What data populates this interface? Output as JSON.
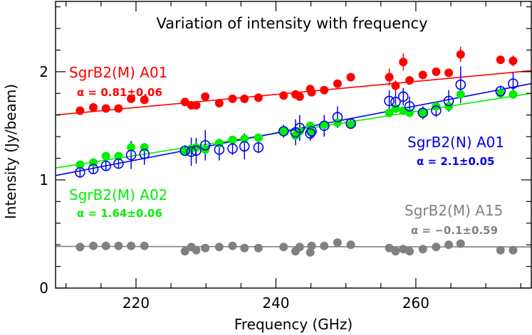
{
  "chart_data": {
    "type": "scatter",
    "title": "Variation of intensity with frequency",
    "xlabel": "Frequency (GHz)",
    "ylabel": "Intensity (Jy/beam)",
    "xlim": [
      208.5,
      276.5
    ],
    "ylim": [
      0,
      2.65
    ],
    "x_ticks": [
      220,
      240,
      260
    ],
    "y_ticks": [
      0,
      1,
      2
    ],
    "grid": false,
    "legend": "none",
    "series": [
      {
        "name": "SgrB2(M) A01",
        "alpha_text": "α = 0.81±0.06",
        "color": "#ff0000",
        "marker": "filled-circle",
        "fit": {
          "x": [
            208.5,
            276.5
          ],
          "y": [
            1.6,
            2.01
          ]
        },
        "points": [
          {
            "x": 212.0,
            "y": 1.64
          },
          {
            "x": 213.9,
            "y": 1.67
          },
          {
            "x": 215.7,
            "y": 1.66
          },
          {
            "x": 217.5,
            "y": 1.66
          },
          {
            "x": 219.3,
            "y": 1.75
          },
          {
            "x": 221.2,
            "y": 1.74
          },
          {
            "x": 227.0,
            "y": 1.72
          },
          {
            "x": 227.9,
            "y": 1.69
          },
          {
            "x": 228.6,
            "y": 1.69
          },
          {
            "x": 229.9,
            "y": 1.77
          },
          {
            "x": 231.9,
            "y": 1.71
          },
          {
            "x": 233.8,
            "y": 1.75
          },
          {
            "x": 235.5,
            "y": 1.75
          },
          {
            "x": 237.5,
            "y": 1.76
          },
          {
            "x": 241.1,
            "y": 1.78
          },
          {
            "x": 242.8,
            "y": 1.79
          },
          {
            "x": 243.4,
            "y": 1.77
          },
          {
            "x": 244.9,
            "y": 1.84
          },
          {
            "x": 245.1,
            "y": 1.81
          },
          {
            "x": 246.9,
            "y": 1.83
          },
          {
            "x": 248.8,
            "y": 1.89
          },
          {
            "x": 250.7,
            "y": 1.95
          },
          {
            "x": 256.2,
            "y": 1.95,
            "err": 0.08
          },
          {
            "x": 257.1,
            "y": 1.87,
            "err": 0.05
          },
          {
            "x": 258.2,
            "y": 2.09,
            "err": 0.08
          },
          {
            "x": 259.1,
            "y": 1.92
          },
          {
            "x": 261.0,
            "y": 1.97
          },
          {
            "x": 262.9,
            "y": 2.0
          },
          {
            "x": 264.7,
            "y": 1.99
          },
          {
            "x": 266.4,
            "y": 2.16,
            "err": 0.07
          },
          {
            "x": 272.1,
            "y": 2.11
          },
          {
            "x": 273.9,
            "y": 2.1,
            "err": 0.05
          }
        ]
      },
      {
        "name": "SgrB2(M) A02",
        "alpha_text": "α = 1.64±0.06",
        "color": "#00ee00",
        "marker": "filled-circle",
        "fit": {
          "x": [
            208.5,
            276.5
          ],
          "y": [
            1.11,
            1.8
          ]
        },
        "points": [
          {
            "x": 212.0,
            "y": 1.14
          },
          {
            "x": 213.9,
            "y": 1.16
          },
          {
            "x": 215.7,
            "y": 1.22
          },
          {
            "x": 217.5,
            "y": 1.22
          },
          {
            "x": 219.3,
            "y": 1.3
          },
          {
            "x": 221.2,
            "y": 1.3
          },
          {
            "x": 227.0,
            "y": 1.26
          },
          {
            "x": 227.9,
            "y": 1.29
          },
          {
            "x": 228.6,
            "y": 1.3
          },
          {
            "x": 229.9,
            "y": 1.28
          },
          {
            "x": 231.9,
            "y": 1.34
          },
          {
            "x": 233.8,
            "y": 1.37
          },
          {
            "x": 235.5,
            "y": 1.38
          },
          {
            "x": 237.5,
            "y": 1.39
          },
          {
            "x": 241.1,
            "y": 1.45
          },
          {
            "x": 242.8,
            "y": 1.41
          },
          {
            "x": 243.4,
            "y": 1.45
          },
          {
            "x": 244.9,
            "y": 1.5
          },
          {
            "x": 245.1,
            "y": 1.44
          },
          {
            "x": 246.9,
            "y": 1.51
          },
          {
            "x": 248.8,
            "y": 1.53
          },
          {
            "x": 250.7,
            "y": 1.51
          },
          {
            "x": 256.2,
            "y": 1.62
          },
          {
            "x": 257.1,
            "y": 1.66
          },
          {
            "x": 258.2,
            "y": 1.64
          },
          {
            "x": 259.1,
            "y": 1.62
          },
          {
            "x": 261.0,
            "y": 1.62
          },
          {
            "x": 262.9,
            "y": 1.68
          },
          {
            "x": 264.7,
            "y": 1.68
          },
          {
            "x": 266.4,
            "y": 1.79
          },
          {
            "x": 272.1,
            "y": 1.8
          },
          {
            "x": 273.9,
            "y": 1.79
          }
        ]
      },
      {
        "name": "SgrB2(N) A01",
        "alpha_text": "α = 2.1±0.05",
        "color": "#0000ee",
        "marker": "open-circle",
        "fit": {
          "x": [
            208.5,
            276.5
          ],
          "y": [
            1.04,
            1.89
          ]
        },
        "points": [
          {
            "x": 212.0,
            "y": 1.07,
            "err": 0.05
          },
          {
            "x": 213.9,
            "y": 1.1,
            "err": 0.04
          },
          {
            "x": 215.7,
            "y": 1.13,
            "err": 0.05
          },
          {
            "x": 217.5,
            "y": 1.15,
            "err": 0.04
          },
          {
            "x": 219.3,
            "y": 1.23,
            "err": 0.13
          },
          {
            "x": 221.2,
            "y": 1.24,
            "err": 0.1
          },
          {
            "x": 227.0,
            "y": 1.27,
            "err": 0.05
          },
          {
            "x": 227.9,
            "y": 1.26,
            "err": 0.13
          },
          {
            "x": 228.6,
            "y": 1.27,
            "err": 0.12
          },
          {
            "x": 229.9,
            "y": 1.32,
            "err": 0.14
          },
          {
            "x": 231.9,
            "y": 1.28,
            "err": 0.1
          },
          {
            "x": 233.8,
            "y": 1.29,
            "err": 0.06
          },
          {
            "x": 235.5,
            "y": 1.31,
            "err": 0.12
          },
          {
            "x": 237.5,
            "y": 1.3,
            "err": 0.05
          },
          {
            "x": 241.1,
            "y": 1.45,
            "err": 0.06
          },
          {
            "x": 242.8,
            "y": 1.44,
            "err": 0.12
          },
          {
            "x": 243.4,
            "y": 1.48,
            "err": 0.12
          },
          {
            "x": 244.9,
            "y": 1.43,
            "err": 0.07
          },
          {
            "x": 245.1,
            "y": 1.45,
            "err": 0.07
          },
          {
            "x": 246.9,
            "y": 1.5,
            "err": 0.1
          },
          {
            "x": 248.8,
            "y": 1.58,
            "err": 0.1
          },
          {
            "x": 250.7,
            "y": 1.52,
            "err": 0.05
          },
          {
            "x": 256.2,
            "y": 1.73,
            "err": 0.1
          },
          {
            "x": 257.1,
            "y": 1.72,
            "err": 0.1
          },
          {
            "x": 258.2,
            "y": 1.77,
            "err": 0.08
          },
          {
            "x": 259.1,
            "y": 1.68,
            "err": 0.09
          },
          {
            "x": 261.0,
            "y": 1.62,
            "err": 0.06
          },
          {
            "x": 262.9,
            "y": 1.64,
            "err": 0.06
          },
          {
            "x": 264.7,
            "y": 1.73,
            "err": 0.1
          },
          {
            "x": 266.4,
            "y": 1.88,
            "err": 0.17
          },
          {
            "x": 272.1,
            "y": 1.82,
            "err": 0.05
          },
          {
            "x": 273.9,
            "y": 1.89,
            "err": 0.1
          }
        ]
      },
      {
        "name": "SgrB2(M) A15",
        "alpha_text": "α = −0.1±0.59",
        "color": "#808080",
        "marker": "filled-circle",
        "fit": {
          "x": [
            208.5,
            276.5
          ],
          "y": [
            0.385,
            0.38
          ]
        },
        "points": [
          {
            "x": 212.0,
            "y": 0.38
          },
          {
            "x": 213.9,
            "y": 0.39
          },
          {
            "x": 215.7,
            "y": 0.39
          },
          {
            "x": 217.5,
            "y": 0.39
          },
          {
            "x": 219.3,
            "y": 0.39
          },
          {
            "x": 221.2,
            "y": 0.39
          },
          {
            "x": 227.0,
            "y": 0.34
          },
          {
            "x": 227.9,
            "y": 0.38
          },
          {
            "x": 228.6,
            "y": 0.35
          },
          {
            "x": 229.9,
            "y": 0.37
          },
          {
            "x": 231.9,
            "y": 0.38
          },
          {
            "x": 233.8,
            "y": 0.39
          },
          {
            "x": 235.5,
            "y": 0.37
          },
          {
            "x": 237.5,
            "y": 0.37
          },
          {
            "x": 241.1,
            "y": 0.38
          },
          {
            "x": 242.8,
            "y": 0.34
          },
          {
            "x": 243.4,
            "y": 0.38
          },
          {
            "x": 244.9,
            "y": 0.33
          },
          {
            "x": 245.1,
            "y": 0.39
          },
          {
            "x": 246.9,
            "y": 0.39
          },
          {
            "x": 248.8,
            "y": 0.42
          },
          {
            "x": 250.7,
            "y": 0.4
          },
          {
            "x": 256.2,
            "y": 0.37
          },
          {
            "x": 257.1,
            "y": 0.34
          },
          {
            "x": 258.2,
            "y": 0.36
          },
          {
            "x": 259.1,
            "y": 0.34
          },
          {
            "x": 261.0,
            "y": 0.36
          },
          {
            "x": 262.9,
            "y": 0.38
          },
          {
            "x": 264.7,
            "y": 0.4
          },
          {
            "x": 266.4,
            "y": 0.41
          },
          {
            "x": 272.1,
            "y": 0.35
          },
          {
            "x": 273.9,
            "y": 0.35
          }
        ]
      }
    ]
  }
}
